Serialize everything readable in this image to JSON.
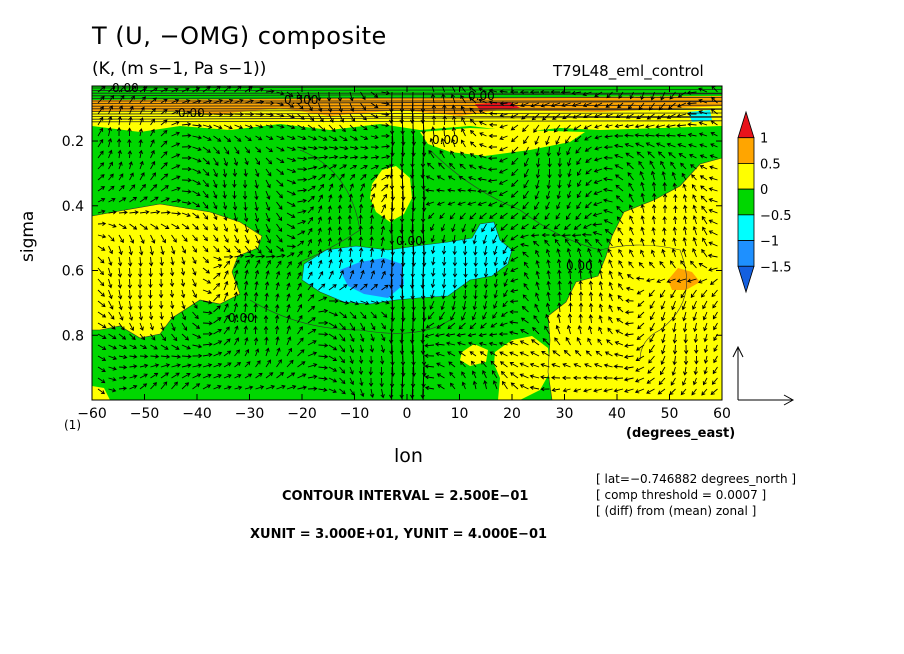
{
  "title": "T (U, −OMG) composite",
  "subtitle": "(K, (m s−1, Pa s−1))",
  "run_name": "T79L48_eml_control",
  "page_index": "(1)",
  "contour_interval": "CONTOUR INTERVAL = 2.500E−01",
  "vector_units": "XUNIT = 3.000E+01, YUNIT = 4.000E−01",
  "info_lines": [
    "[ lat=−0.746882 degrees_north ]",
    "[ comp threshold = 0.0007 ]",
    "[ (diff) from (mean) zonal ]"
  ],
  "chart_data": {
    "type": "contour",
    "xlabel": "lon",
    "x_unit": "(degrees_east)",
    "ylabel": "sigma",
    "xlim": [
      -60,
      60
    ],
    "ylim": [
      1.0,
      0.03
    ],
    "y_inverted": true,
    "x_ticks": [
      "−60",
      "−50",
      "−40",
      "−30",
      "−20",
      "−10",
      "0",
      "10",
      "20",
      "30",
      "40",
      "50",
      "60"
    ],
    "y_ticks": [
      "0.2",
      "0.4",
      "0.6",
      "0.8"
    ],
    "colorbar": {
      "levels": [
        "1",
        "0.5",
        "0",
        "−0.5",
        "−1",
        "−1.5"
      ],
      "colors": [
        "#e8131b",
        "#ffa500",
        "#ffff00",
        "#00d700",
        "#00ffff",
        "#1e90ff",
        "#1460e0"
      ],
      "meaning": [
        "> 1",
        "0.5 to 1",
        "0 to 0.5",
        "−0.5 to 0",
        "−1 to −0.5",
        "−1.5 to −1",
        "< −1.5"
      ]
    },
    "contour_labels": [
      "0.00",
      "0.500",
      "0.00",
      "0.00",
      "0.00",
      "0.00",
      "0.00",
      "0.00"
    ],
    "regions": [
      {
        "value_range": "0 to 0.5",
        "lon": [
          -60,
          -36
        ],
        "sigma": [
          0.4,
          0.82
        ],
        "description": "warm anomaly west"
      },
      {
        "value_range": "0 to 0.5",
        "lon": [
          25,
          60
        ],
        "sigma": [
          0.26,
          1.0
        ],
        "description": "warm anomaly east"
      },
      {
        "value_range": "0.5 to 1",
        "lon": [
          48,
          56
        ],
        "sigma": [
          0.6,
          0.64
        ],
        "description": "warm core east"
      },
      {
        "value_range": "−1 to −0.5",
        "lon": [
          -30,
          28
        ],
        "sigma": [
          0.48,
          0.7
        ],
        "description": "cold anomaly mid levels"
      },
      {
        "value_range": "−1.5 to −1",
        "lon": [
          -17,
          -3
        ],
        "sigma": [
          0.54,
          0.66
        ],
        "description": "cold core"
      },
      {
        "value_range": "0 to 0.5",
        "lon": [
          -60,
          60
        ],
        "sigma": [
          0.03,
          0.16
        ],
        "description": "upper level band"
      }
    ],
    "vectors": "wind (U, −OMG) arrows on regular grid; strong vertical motion near lon 0",
    "reference_vector": {
      "xunit": 30.0,
      "yunit": 0.4
    }
  }
}
